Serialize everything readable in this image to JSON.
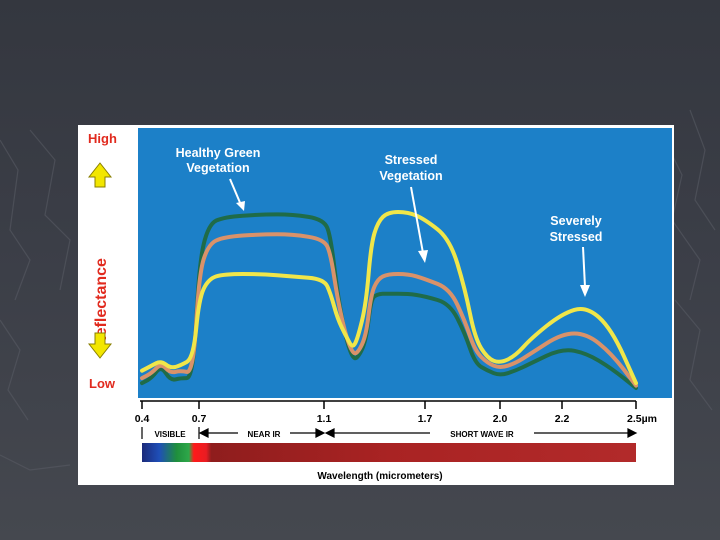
{
  "chart_data": {
    "type": "line",
    "ylabel": "Reflectance",
    "y_high_label": "High",
    "y_low_label": "Low",
    "xlabel": "Wavelength (micrometers)",
    "x_ticks": [
      "0.4",
      "0.7",
      "1.1",
      "1.7",
      "2.0",
      "2.2",
      "2.5µm"
    ],
    "x_tick_values": [
      0.4,
      0.7,
      1.1,
      1.7,
      2.0,
      2.2,
      2.5
    ],
    "xlim": [
      0.4,
      2.5
    ],
    "ylim": [
      0,
      100
    ],
    "regions": [
      "VISIBLE",
      "NEAR IR",
      "SHORT WAVE IR"
    ],
    "annotations": [
      {
        "text_lines": [
          "Healthy Green",
          "Vegetation"
        ]
      },
      {
        "text_lines": [
          "Stressed",
          "Vegetation"
        ]
      },
      {
        "text_lines": [
          "Severely",
          "Stressed"
        ]
      }
    ],
    "series": [
      {
        "color": "#1f6b48",
        "x": [
          0.4,
          0.45,
          0.5,
          0.55,
          0.6,
          0.67,
          0.7,
          0.73,
          0.78,
          0.9,
          1.0,
          1.1,
          1.14,
          1.18,
          1.23,
          1.27,
          1.3,
          1.35,
          1.38,
          1.42,
          1.48,
          1.6,
          1.7,
          1.8,
          1.86,
          1.9,
          1.95,
          2.0,
          2.05,
          2.1,
          2.2,
          2.3,
          2.4,
          2.5
        ],
        "values": [
          4,
          6,
          11,
          5,
          6,
          6,
          52,
          68,
          71,
          72,
          72,
          70,
          63,
          40,
          22,
          14,
          14,
          21,
          38,
          40,
          40,
          40,
          39,
          36,
          24,
          12,
          9,
          7,
          9,
          12,
          18,
          16,
          10,
          2
        ]
      },
      {
        "color": "#d9926a",
        "x": [
          0.4,
          0.45,
          0.5,
          0.55,
          0.6,
          0.67,
          0.7,
          0.73,
          0.78,
          0.9,
          1.0,
          1.1,
          1.14,
          1.18,
          1.23,
          1.27,
          1.3,
          1.35,
          1.38,
          1.42,
          1.48,
          1.6,
          1.7,
          1.8,
          1.86,
          1.9,
          1.95,
          2.0,
          2.05,
          2.1,
          2.2,
          2.3,
          2.4,
          2.5
        ],
        "values": [
          6,
          8,
          12,
          8,
          9,
          8,
          48,
          60,
          63,
          64,
          64,
          62,
          56,
          38,
          23,
          16,
          16,
          23,
          40,
          46,
          48,
          48,
          46,
          42,
          29,
          17,
          12,
          10,
          12,
          16,
          24,
          24,
          16,
          3
        ]
      },
      {
        "color": "#f0e64a",
        "x": [
          0.4,
          0.45,
          0.5,
          0.55,
          0.6,
          0.67,
          0.7,
          0.73,
          0.78,
          0.9,
          1.0,
          1.1,
          1.14,
          1.18,
          1.23,
          1.27,
          1.3,
          1.35,
          1.38,
          1.42,
          1.48,
          1.6,
          1.7,
          1.8,
          1.86,
          1.9,
          1.95,
          2.0,
          2.05,
          2.1,
          2.2,
          2.3,
          2.4,
          2.5
        ],
        "values": [
          9,
          11,
          13,
          10,
          11,
          14,
          38,
          46,
          48,
          48,
          47,
          46,
          40,
          30,
          23,
          18,
          22,
          36,
          60,
          69,
          73,
          73,
          70,
          62,
          42,
          22,
          14,
          12,
          15,
          22,
          32,
          35,
          26,
          4
        ]
      }
    ]
  }
}
